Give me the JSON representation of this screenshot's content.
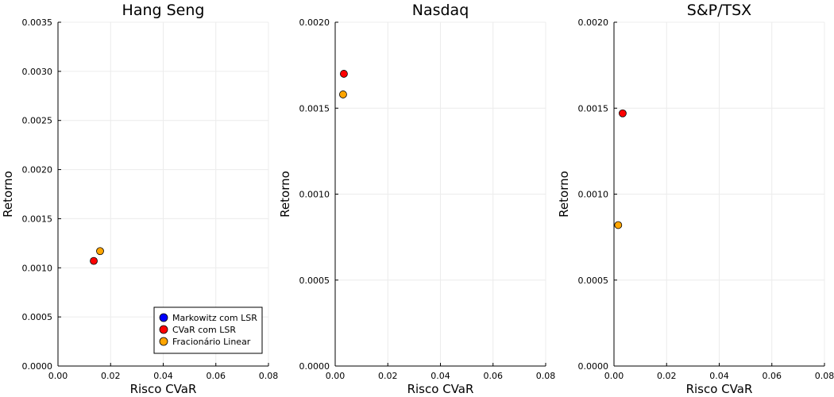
{
  "chart_data": [
    {
      "type": "scatter",
      "title": "Hang Seng",
      "xlabel": "Risco CVaR",
      "ylabel": "Retorno",
      "xlim": [
        0,
        0.08
      ],
      "ylim": [
        0,
        0.0035
      ],
      "x_ticks": [
        "0.00",
        "0.02",
        "0.04",
        "0.06",
        "0.08"
      ],
      "y_ticks": [
        "0.0000",
        "0.0005",
        "0.0010",
        "0.0015",
        "0.0020",
        "0.0025",
        "0.0030",
        "0.0035"
      ],
      "grid": true,
      "legend": "bottom-right",
      "series": [
        {
          "name": "Markowitz com LSR",
          "color": "#0000ff",
          "points": []
        },
        {
          "name": "CVaR com LSR",
          "color": "#ff0000",
          "points": [
            [
              0.0136,
              0.00107
            ]
          ]
        },
        {
          "name": "Fracionário Linear",
          "color": "#ffa500",
          "points": [
            [
              0.016,
              0.00117
            ]
          ]
        }
      ]
    },
    {
      "type": "scatter",
      "title": "Nasdaq",
      "xlabel": "Risco CVaR",
      "ylabel": "Retorno",
      "xlim": [
        0,
        0.08
      ],
      "ylim": [
        0,
        0.002
      ],
      "x_ticks": [
        "0.00",
        "0.02",
        "0.04",
        "0.06",
        "0.08"
      ],
      "y_ticks": [
        "0.0000",
        "0.0005",
        "0.0010",
        "0.0015",
        "0.0020"
      ],
      "grid": true,
      "series": [
        {
          "name": "Markowitz com LSR",
          "color": "#0000ff",
          "points": []
        },
        {
          "name": "CVaR com LSR",
          "color": "#ff0000",
          "points": [
            [
              0.0033,
              0.0017
            ]
          ]
        },
        {
          "name": "Fracionário Linear",
          "color": "#ffa500",
          "points": [
            [
              0.003,
              0.00158
            ]
          ]
        }
      ]
    },
    {
      "type": "scatter",
      "title": "S&P/TSX",
      "xlabel": "Risco CVaR",
      "ylabel": "Retorno",
      "xlim": [
        0,
        0.08
      ],
      "ylim": [
        0,
        0.002
      ],
      "x_ticks": [
        "0.00",
        "0.02",
        "0.04",
        "0.06",
        "0.08"
      ],
      "y_ticks": [
        "0.0000",
        "0.0005",
        "0.0010",
        "0.0015",
        "0.0020"
      ],
      "grid": true,
      "series": [
        {
          "name": "Markowitz com LSR",
          "color": "#0000ff",
          "points": []
        },
        {
          "name": "CVaR com LSR",
          "color": "#ff0000",
          "points": [
            [
              0.0033,
              0.00147
            ]
          ]
        },
        {
          "name": "Fracionário Linear",
          "color": "#ffa500",
          "points": [
            [
              0.0016,
              0.00082
            ]
          ]
        }
      ]
    }
  ]
}
